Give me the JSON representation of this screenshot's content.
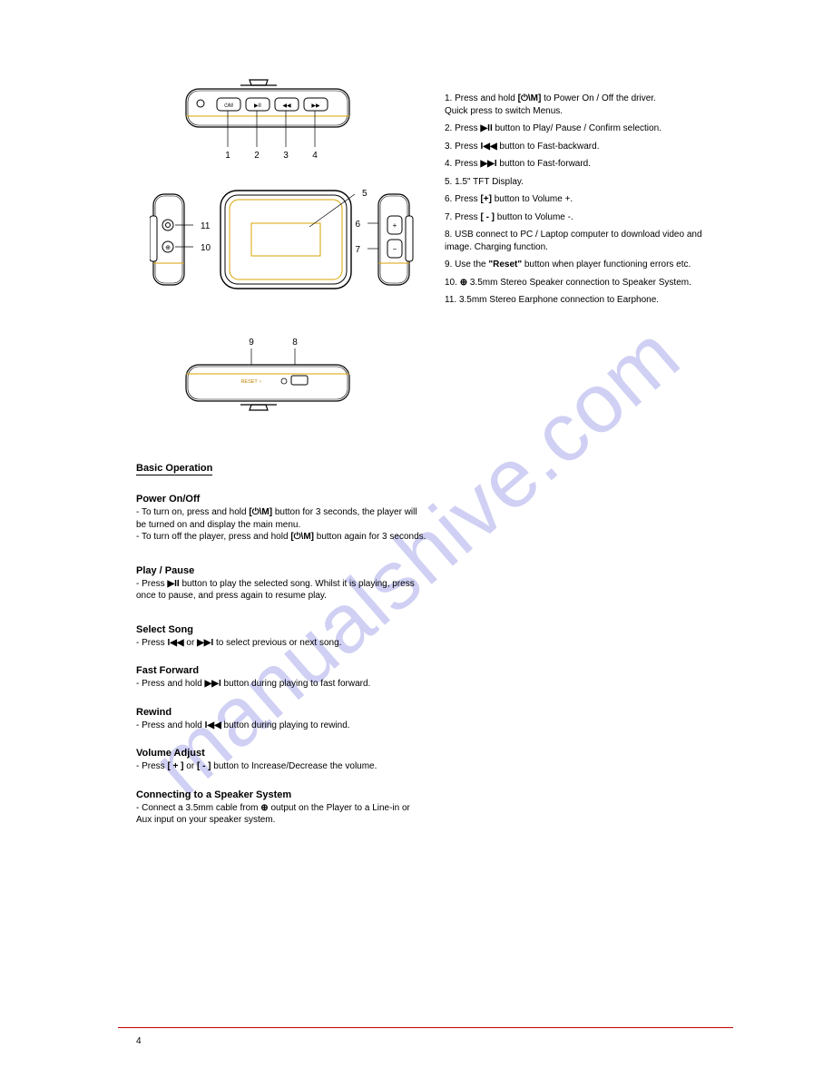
{
  "watermark": "manualshive.com",
  "page_number": "4",
  "diagram": {
    "stroke": "#000000",
    "accent": "#d9a300",
    "callout_font_size": 10,
    "callouts": [
      "1",
      "2",
      "3",
      "4",
      "5",
      "6",
      "7",
      "8",
      "9",
      "10",
      "11"
    ],
    "reset_label": "RESET"
  },
  "right_top": {
    "items": [
      "1.  Press and hold <b>[⏻\\M]</b> to Power On / Off the driver.\nQuick press to switch Menus.",
      "2.  Press <b>▶II</b> button to Play/ Pause / Confirm selection.",
      "3.  Press <b>I◀◀</b> button to Fast-backward.",
      "4.  Press <b>▶▶I</b> button to Fast-forward.",
      "5.  1.5\" TFT Display.",
      "6.  Press <b>[+]</b> button to Volume +.",
      "7.  Press <b>[ - ]</b> button to Volume -.",
      "8.  USB connect to PC / Laptop computer to download video and image. Charging function.",
      "9.  Use the <b>\"Reset\"</b> button when player functioning errors etc.",
      "10.  <b>⊕</b> 3.5mm Stereo Speaker connection to Speaker System.",
      "11.  3.5mm Stereo Earphone connection to Earphone."
    ]
  },
  "basic_ops": {
    "title": "Basic Operation",
    "power": {
      "title": "Power On/Off",
      "l1": "To turn on, press and hold <b>[⏻\\M]</b> button for 3 seconds, the player will be turned on and display the main menu.",
      "l2": "To turn off the player, press and hold <b>[⏻\\M]</b> button again for 3 seconds."
    },
    "playpause": {
      "title": "Play / Pause",
      "l1": "Press <b>▶II</b> button to play the selected song. Whilst it is playing, press once to pause, and press again to resume play."
    },
    "select": {
      "title": "Select Song",
      "l1": "Press <b>I◀◀</b> or <b>▶▶I</b> to select previous or next song."
    },
    "ff": {
      "title": "Fast Forward",
      "l1": "Press and hold <b>▶▶I</b> button during playing to fast forward."
    },
    "rew": {
      "title": "Rewind",
      "l1": "Press and hold <b>I◀◀</b> button during playing to rewind."
    },
    "vol": {
      "title": "Volume Adjust",
      "l1": "Press <b>[ + ]</b> or <b>[ - ]</b> button to Increase/Decrease the volume."
    },
    "speaker": {
      "title": "Connecting to a Speaker System",
      "l1": "Connect a 3.5mm cable from <b>⊕</b> output on the Player to a Line-in or Aux input on your speaker system."
    }
  }
}
